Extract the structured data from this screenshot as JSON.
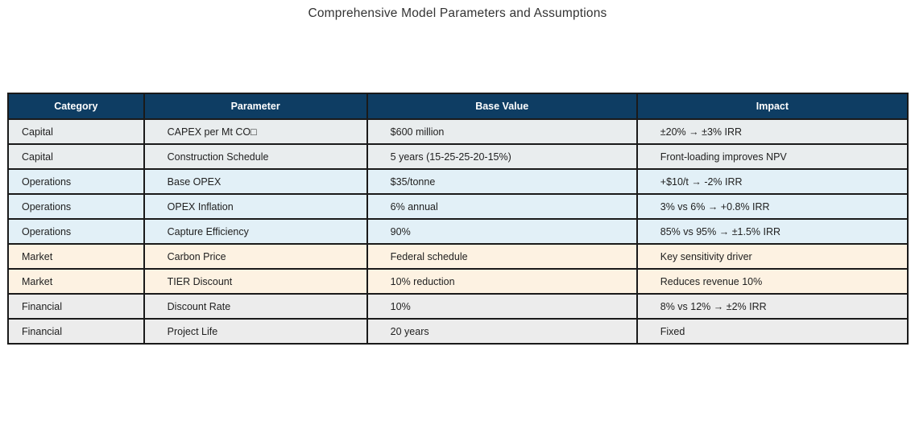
{
  "title": "Comprehensive Model Parameters and Assumptions",
  "theme": {
    "header_bg": "#0e3d63",
    "header_text": "#ffffff",
    "border_color": "#1a1a1a",
    "row_colors": {
      "Capital": "#e9edee",
      "Operations": "#e2f0f7",
      "Market": "#fdf2e2",
      "Financial": "#ececec"
    }
  },
  "chart_data": {
    "type": "table",
    "title": "Comprehensive Model Parameters and Assumptions",
    "columns": [
      "Category",
      "Parameter",
      "Base Value",
      "Impact"
    ],
    "rows": [
      {
        "category": "Capital",
        "parameter": "CAPEX per Mt CO□",
        "base_value": "$600 million",
        "impact": "±20% → ±3% IRR"
      },
      {
        "category": "Capital",
        "parameter": "Construction Schedule",
        "base_value": "5 years (15-25-25-20-15%)",
        "impact": "Front-loading improves NPV"
      },
      {
        "category": "Operations",
        "parameter": "Base OPEX",
        "base_value": "$35/tonne",
        "impact": "+$10/t → -2% IRR"
      },
      {
        "category": "Operations",
        "parameter": "OPEX Inflation",
        "base_value": "6% annual",
        "impact": "3% vs 6% → +0.8% IRR"
      },
      {
        "category": "Operations",
        "parameter": "Capture Efficiency",
        "base_value": "90%",
        "impact": "85% vs 95% → ±1.5% IRR"
      },
      {
        "category": "Market",
        "parameter": "Carbon Price",
        "base_value": "Federal schedule",
        "impact": "Key sensitivity driver"
      },
      {
        "category": "Market",
        "parameter": "TIER Discount",
        "base_value": "10% reduction",
        "impact": "Reduces revenue 10%"
      },
      {
        "category": "Financial",
        "parameter": "Discount Rate",
        "base_value": "10%",
        "impact": "8% vs 12% → ±2% IRR"
      },
      {
        "category": "Financial",
        "parameter": "Project Life",
        "base_value": "20 years",
        "impact": "Fixed"
      }
    ]
  }
}
